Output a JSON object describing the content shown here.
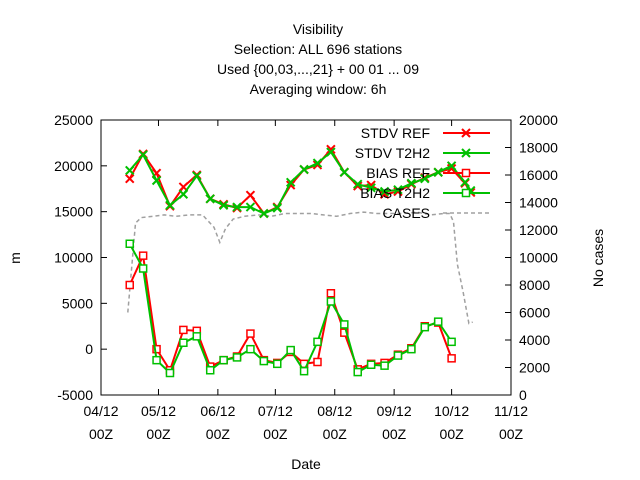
{
  "chart_data": {
    "type": "line",
    "title_lines": [
      "Visibility",
      "Selection: ALL    696 stations",
      "Used {00,03,...,21} + 00 01 ... 09",
      "Averaging window:  6h"
    ],
    "xlabel": "Date",
    "ylabel": "m",
    "y2label": "No cases",
    "xlim": [
      "2008-04-12",
      "2008-11-12"
    ],
    "x_ticks": [
      {
        "date": "2008-04-12",
        "line1": "04/12",
        "line2": "00Z"
      },
      {
        "date": "2008-05-12",
        "line1": "05/12",
        "line2": "00Z"
      },
      {
        "date": "2008-06-12",
        "line1": "06/12",
        "line2": "00Z"
      },
      {
        "date": "2008-07-12",
        "line1": "07/12",
        "line2": "00Z"
      },
      {
        "date": "2008-08-12",
        "line1": "08/12",
        "line2": "00Z"
      },
      {
        "date": "2008-09-12",
        "line1": "09/12",
        "line2": "00Z"
      },
      {
        "date": "2008-10-12",
        "line1": "10/12",
        "line2": "00Z"
      },
      {
        "date": "2008-11-12",
        "line1": "11/12",
        "line2": "00Z"
      }
    ],
    "ylim": [
      -5000,
      25000
    ],
    "y_ticks": [
      -5000,
      0,
      5000,
      10000,
      15000,
      20000,
      25000
    ],
    "y2lim": [
      0,
      20000
    ],
    "y2_ticks": [
      0,
      2000,
      4000,
      6000,
      8000,
      10000,
      12000,
      14000,
      16000,
      18000,
      20000
    ],
    "legend_position": "top-right",
    "series": [
      {
        "name": "STDV REF",
        "color": "#ff0000",
        "marker": "x",
        "axis": "left",
        "points": [
          [
            "2008-04-27",
            18600
          ],
          [
            "2008-05-04",
            21300
          ],
          [
            "2008-05-11",
            19200
          ],
          [
            "2008-05-18",
            15600
          ],
          [
            "2008-05-25",
            17700
          ],
          [
            "2008-06-01",
            19000
          ],
          [
            "2008-06-08",
            16400
          ],
          [
            "2008-06-15",
            15800
          ],
          [
            "2008-06-22",
            15400
          ],
          [
            "2008-06-29",
            16800
          ],
          [
            "2008-07-06",
            14800
          ],
          [
            "2008-07-13",
            15500
          ],
          [
            "2008-07-20",
            17900
          ],
          [
            "2008-07-27",
            19600
          ],
          [
            "2008-08-03",
            20100
          ],
          [
            "2008-08-10",
            21800
          ],
          [
            "2008-08-17",
            19300
          ],
          [
            "2008-08-24",
            17800
          ],
          [
            "2008-08-31",
            17900
          ],
          [
            "2008-09-07",
            16900
          ],
          [
            "2008-09-14",
            17200
          ],
          [
            "2008-09-21",
            18000
          ],
          [
            "2008-09-28",
            18700
          ],
          [
            "2008-10-05",
            19300
          ],
          [
            "2008-10-12",
            19700
          ],
          [
            "2008-10-19",
            18100
          ],
          [
            "2008-10-22",
            17100
          ]
        ]
      },
      {
        "name": "STDV T2H2",
        "color": "#00c000",
        "marker": "x",
        "axis": "left",
        "points": [
          [
            "2008-04-27",
            19500
          ],
          [
            "2008-05-04",
            21200
          ],
          [
            "2008-05-11",
            18400
          ],
          [
            "2008-05-18",
            15700
          ],
          [
            "2008-05-25",
            16900
          ],
          [
            "2008-06-01",
            18900
          ],
          [
            "2008-06-08",
            16400
          ],
          [
            "2008-06-15",
            15700
          ],
          [
            "2008-06-22",
            15500
          ],
          [
            "2008-06-29",
            15500
          ],
          [
            "2008-07-06",
            14800
          ],
          [
            "2008-07-13",
            15400
          ],
          [
            "2008-07-20",
            18200
          ],
          [
            "2008-07-27",
            19600
          ],
          [
            "2008-08-03",
            20300
          ],
          [
            "2008-08-10",
            21500
          ],
          [
            "2008-08-17",
            19300
          ],
          [
            "2008-08-24",
            18000
          ],
          [
            "2008-08-31",
            17600
          ],
          [
            "2008-09-07",
            17200
          ],
          [
            "2008-09-14",
            17400
          ],
          [
            "2008-09-21",
            18100
          ],
          [
            "2008-09-28",
            18600
          ],
          [
            "2008-10-05",
            19300
          ],
          [
            "2008-10-12",
            20000
          ],
          [
            "2008-10-19",
            18200
          ],
          [
            "2008-10-22",
            17300
          ]
        ]
      },
      {
        "name": "BIAS REF",
        "color": "#ff0000",
        "marker": "square",
        "axis": "left",
        "points": [
          [
            "2008-04-27",
            7000
          ],
          [
            "2008-05-04",
            10200
          ],
          [
            "2008-05-11",
            0
          ],
          [
            "2008-05-18",
            -2300
          ],
          [
            "2008-05-25",
            2100
          ],
          [
            "2008-06-01",
            2000
          ],
          [
            "2008-06-08",
            -1900
          ],
          [
            "2008-06-15",
            -1200
          ],
          [
            "2008-06-22",
            -800
          ],
          [
            "2008-06-29",
            1700
          ],
          [
            "2008-07-06",
            -1200
          ],
          [
            "2008-07-13",
            -1500
          ],
          [
            "2008-07-20",
            -300
          ],
          [
            "2008-07-27",
            -1600
          ],
          [
            "2008-08-03",
            -1400
          ],
          [
            "2008-08-10",
            6100
          ],
          [
            "2008-08-17",
            1800
          ],
          [
            "2008-08-24",
            -2200
          ],
          [
            "2008-08-31",
            -1600
          ],
          [
            "2008-09-07",
            -1500
          ],
          [
            "2008-09-14",
            -600
          ],
          [
            "2008-09-21",
            100
          ],
          [
            "2008-09-28",
            2500
          ],
          [
            "2008-10-05",
            2900
          ],
          [
            "2008-10-12",
            -1000
          ]
        ]
      },
      {
        "name": "BIAS T2H2",
        "color": "#00c000",
        "marker": "square",
        "axis": "left",
        "points": [
          [
            "2008-04-27",
            11500
          ],
          [
            "2008-05-04",
            8800
          ],
          [
            "2008-05-11",
            -1200
          ],
          [
            "2008-05-18",
            -2600
          ],
          [
            "2008-05-25",
            700
          ],
          [
            "2008-06-01",
            1400
          ],
          [
            "2008-06-08",
            -2300
          ],
          [
            "2008-06-15",
            -1200
          ],
          [
            "2008-06-22",
            -900
          ],
          [
            "2008-06-29",
            0
          ],
          [
            "2008-07-06",
            -1300
          ],
          [
            "2008-07-13",
            -1600
          ],
          [
            "2008-07-20",
            -100
          ],
          [
            "2008-07-27",
            -2400
          ],
          [
            "2008-08-03",
            800
          ],
          [
            "2008-08-10",
            5200
          ],
          [
            "2008-08-17",
            2700
          ],
          [
            "2008-08-24",
            -2500
          ],
          [
            "2008-08-31",
            -1700
          ],
          [
            "2008-09-07",
            -1800
          ],
          [
            "2008-09-14",
            -700
          ],
          [
            "2008-09-21",
            0
          ],
          [
            "2008-09-28",
            2400
          ],
          [
            "2008-10-05",
            3000
          ],
          [
            "2008-10-12",
            800
          ]
        ]
      },
      {
        "name": "CASES",
        "color": "#a0a0a0",
        "marker": "none",
        "dash": "dashed",
        "axis": "right",
        "points": [
          [
            "2008-04-26",
            6000
          ],
          [
            "2008-04-30",
            12500
          ],
          [
            "2008-05-03",
            12900
          ],
          [
            "2008-05-09",
            13000
          ],
          [
            "2008-05-15",
            13100
          ],
          [
            "2008-05-21",
            13000
          ],
          [
            "2008-05-28",
            13100
          ],
          [
            "2008-06-04",
            13100
          ],
          [
            "2008-06-10",
            12200
          ],
          [
            "2008-06-13",
            11100
          ],
          [
            "2008-06-16",
            12100
          ],
          [
            "2008-06-20",
            12800
          ],
          [
            "2008-06-26",
            13000
          ],
          [
            "2008-07-03",
            13100
          ],
          [
            "2008-07-10",
            13000
          ],
          [
            "2008-07-17",
            13200
          ],
          [
            "2008-07-24",
            13200
          ],
          [
            "2008-07-31",
            13200
          ],
          [
            "2008-08-06",
            13100
          ],
          [
            "2008-08-13",
            13000
          ],
          [
            "2008-08-20",
            13200
          ],
          [
            "2008-08-27",
            13300
          ],
          [
            "2008-09-03",
            13200
          ],
          [
            "2008-09-10",
            13200
          ],
          [
            "2008-09-17",
            13200
          ],
          [
            "2008-09-24",
            13300
          ],
          [
            "2008-10-01",
            13100
          ],
          [
            "2008-10-08",
            13200
          ],
          [
            "2008-10-11",
            13200
          ],
          [
            "2008-10-13",
            12600
          ],
          [
            "2008-10-15",
            9500
          ],
          [
            "2008-10-18",
            7500
          ],
          [
            "2008-10-21",
            5200
          ],
          [
            "2008-10-23",
            5300
          ]
        ]
      }
    ]
  }
}
